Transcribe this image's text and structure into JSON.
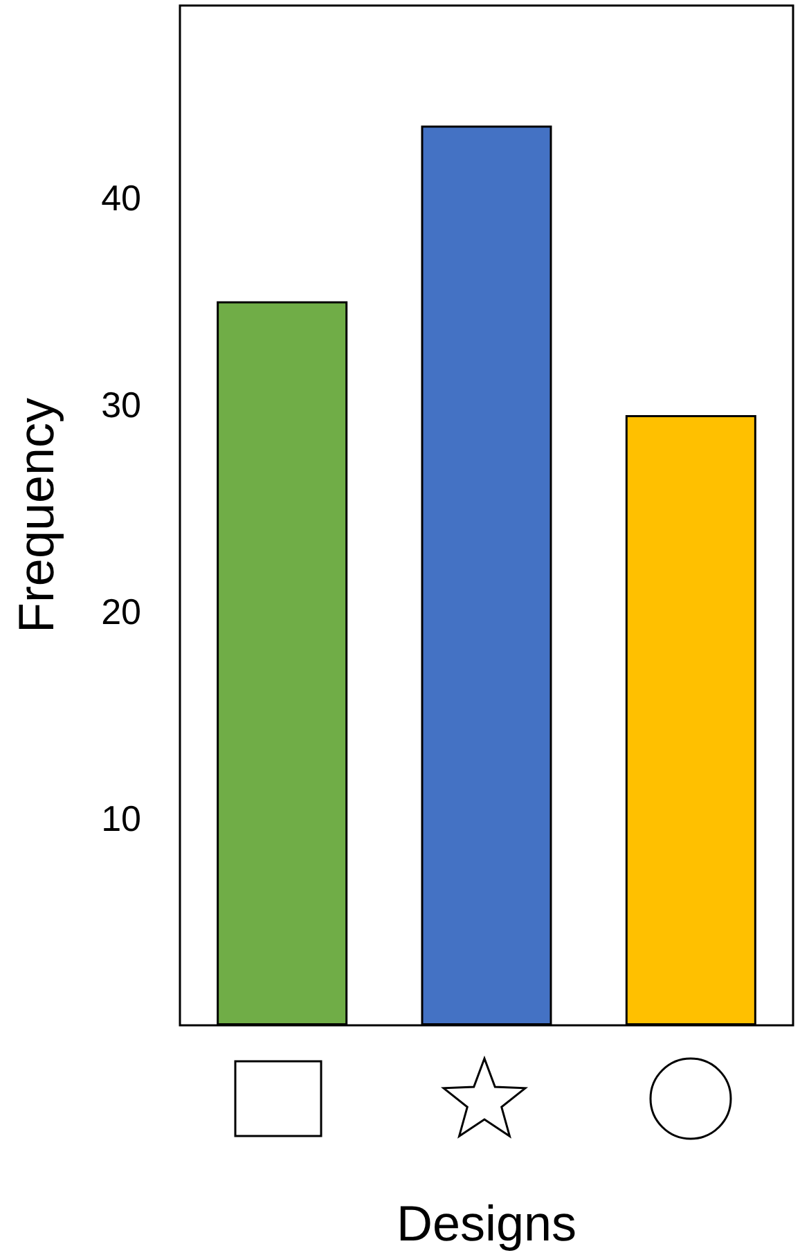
{
  "chart_data": {
    "type": "bar",
    "xlabel": "Designs",
    "ylabel": "Frequency",
    "categories": [
      null,
      null,
      null
    ],
    "values": [
      35,
      43.5,
      29.5
    ],
    "colors": [
      "#70ad47",
      "#4472c4",
      "#ffc000"
    ],
    "ylim": [
      0,
      49.3
    ],
    "yticks": [
      10,
      20,
      30,
      40
    ],
    "grid": false
  }
}
